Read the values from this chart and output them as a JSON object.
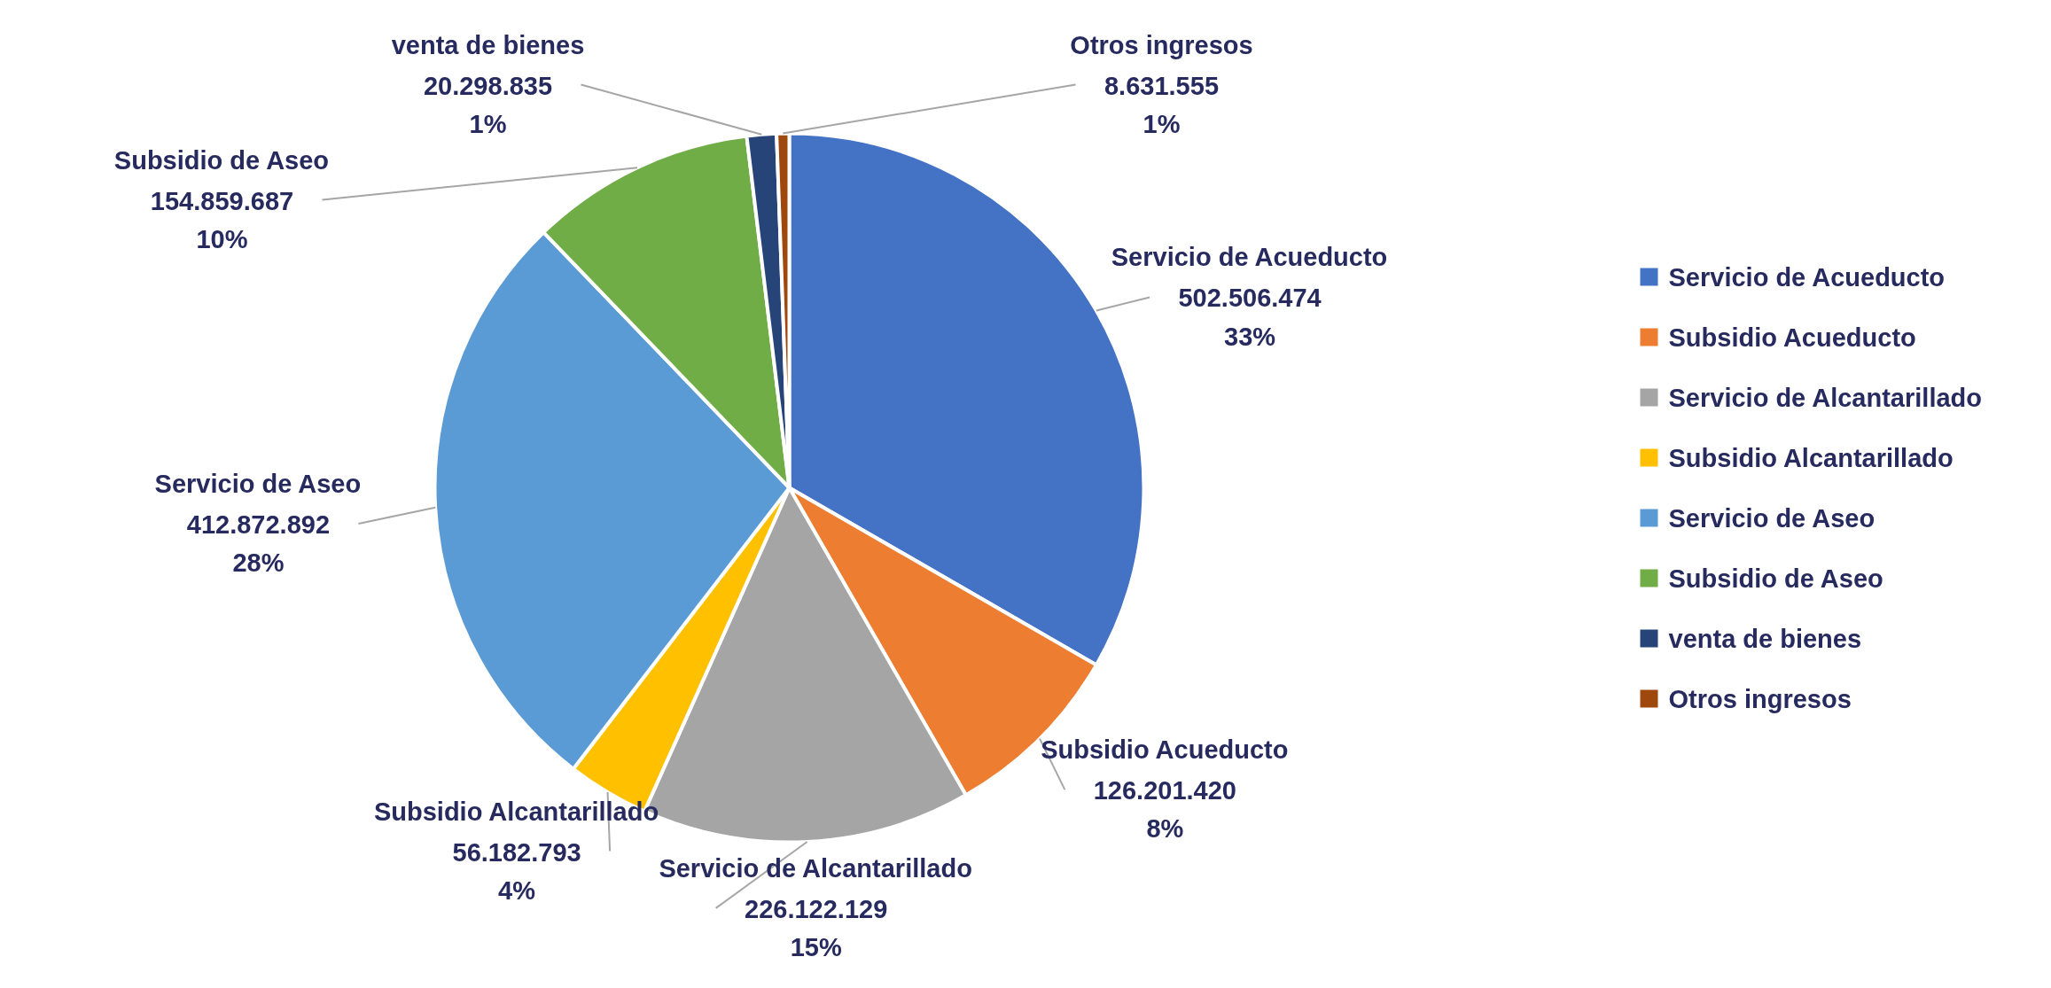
{
  "chart_data": {
    "type": "pie",
    "categories": [
      "Servicio de Acueducto",
      "Subsidio Acueducto",
      "Servicio de Alcantarillado",
      "Subsidio Alcantarillado",
      "Servicio de Aseo",
      "Subsidio de Aseo",
      "venta de bienes",
      "Otros ingresos"
    ],
    "values": [
      502506474,
      126201420,
      226122129,
      56182793,
      412872892,
      154859687,
      20298835,
      8631555
    ],
    "value_labels": [
      "502.506.474\n33%",
      "126.201.420\n8%",
      "226.122.129\n15%",
      "56.182.793\n4%",
      "412.872.892\n28%",
      "154.859.687\n10%",
      "20.298.835\n1%",
      "8.631.555\n1%"
    ],
    "colors": [
      "#4472c4",
      "#ed7d31",
      "#a5a5a5",
      "#ffc000",
      "#5b9bd5",
      "#70ad47",
      "#264478",
      "#9e480e"
    ],
    "legend": "right"
  }
}
